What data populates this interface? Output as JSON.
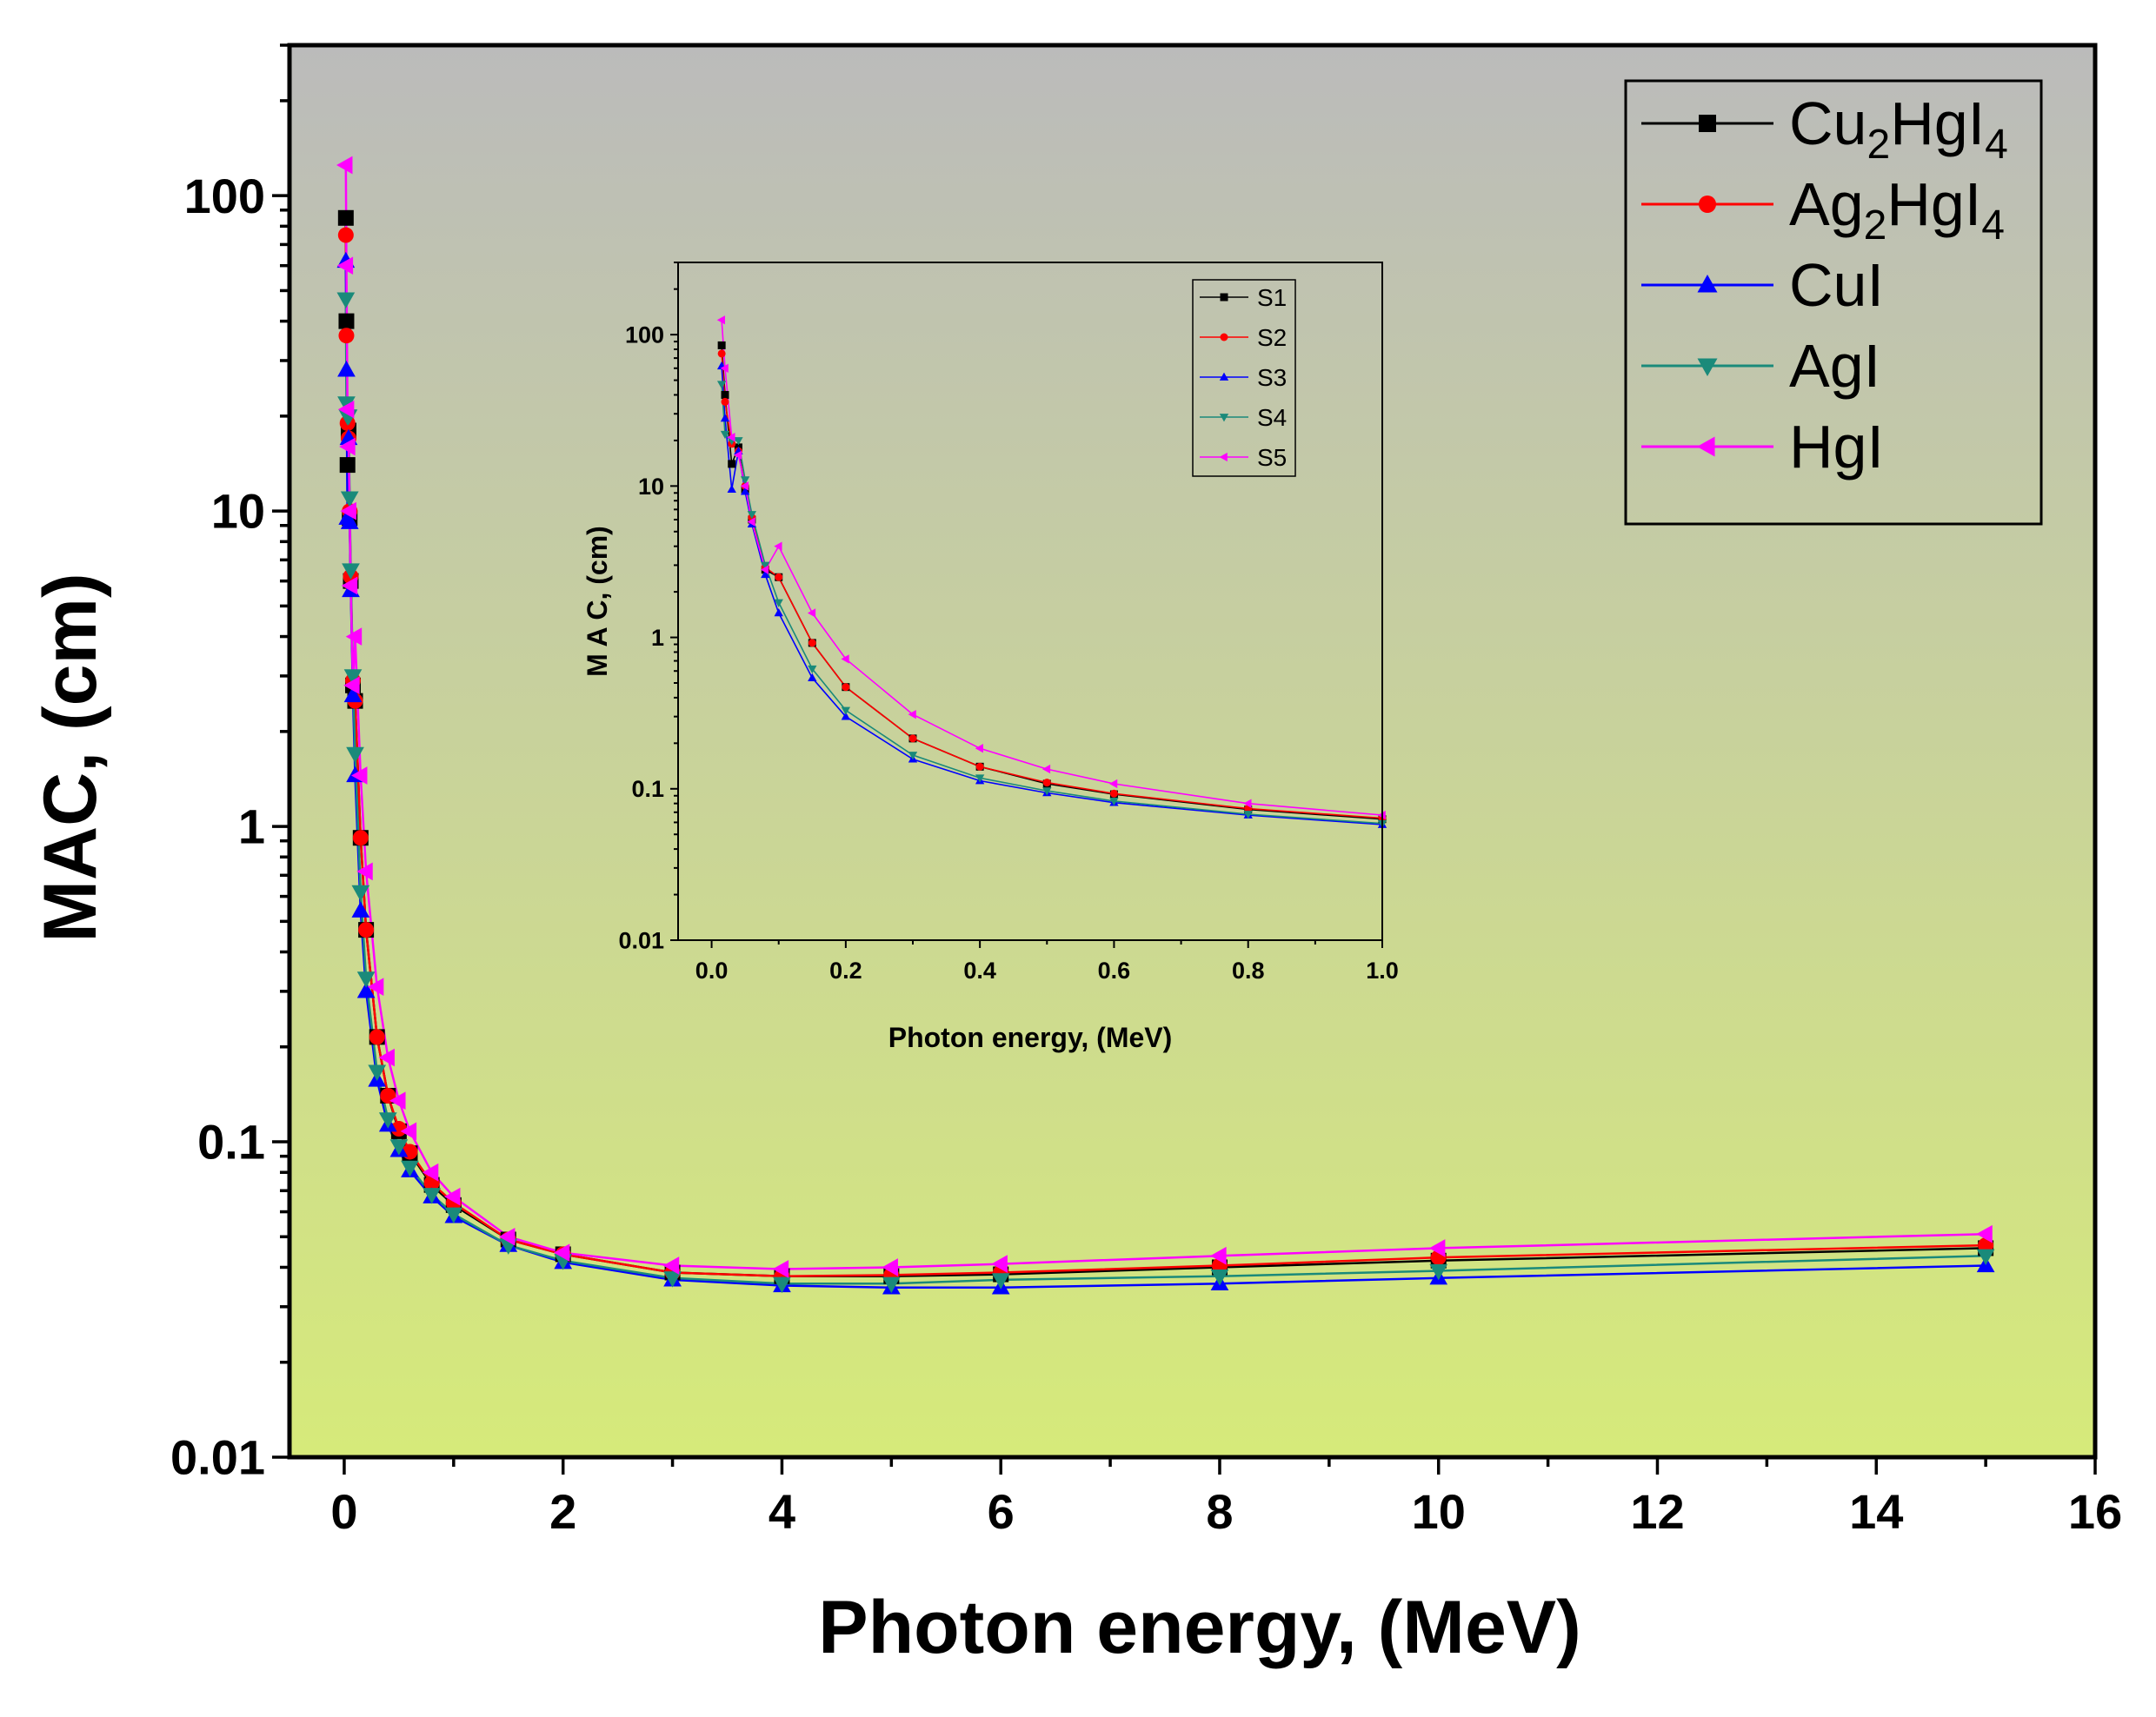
{
  "chart_data": [
    {
      "type": "line",
      "title": "",
      "xlabel": "Photon energy, (MeV)",
      "ylabel": "MAC, (cm)",
      "yscale": "log",
      "xlim": [
        -0.5,
        16
      ],
      "ylim": [
        0.01,
        300
      ],
      "x_ticks": [
        0,
        2,
        4,
        6,
        8,
        10,
        12,
        14,
        16
      ],
      "x_tick_labels": [
        "0",
        "2",
        "4",
        "6",
        "8",
        "10",
        "12",
        "14",
        "16"
      ],
      "y_ticks": [
        0.01,
        0.1,
        1,
        10,
        100
      ],
      "y_tick_labels": [
        "0.01",
        "0.1",
        "1",
        "10",
        "100"
      ],
      "legend_position": "top-right",
      "background": {
        "top": "#bbbbbb",
        "bottom": "#d6ea7a"
      },
      "x": [
        0.015,
        0.02,
        0.03,
        0.04,
        0.05,
        0.06,
        0.08,
        0.1,
        0.15,
        0.2,
        0.3,
        0.4,
        0.5,
        0.6,
        0.8,
        1,
        1.5,
        2,
        3,
        4,
        5,
        6,
        8,
        10,
        15
      ],
      "series": [
        {
          "name": "Cu2HgI4",
          "name_base": "Cu",
          "name_sub1": "2",
          "name_mid": "HgI",
          "name_sub2": "4",
          "color": "#000000",
          "marker": "square",
          "values": [
            85,
            40,
            14,
            18,
            9.5,
            6,
            2.8,
            2.5,
            0.92,
            0.47,
            0.215,
            0.14,
            0.108,
            0.092,
            0.073,
            0.063,
            0.049,
            0.044,
            0.0385,
            0.0375,
            0.0375,
            0.038,
            0.04,
            0.042,
            0.046
          ]
        },
        {
          "name": "Ag2HgI4",
          "name_base": "Ag",
          "name_sub1": "2",
          "name_mid": "HgI",
          "name_sub2": "4",
          "color": "#ff0000",
          "marker": "circle",
          "values": [
            75,
            36,
            19,
            17,
            10,
            6.2,
            2.9,
            2.5,
            0.92,
            0.47,
            0.215,
            0.14,
            0.11,
            0.093,
            0.074,
            0.064,
            0.049,
            0.044,
            0.0385,
            0.0375,
            0.0378,
            0.0385,
            0.0405,
            0.043,
            0.047
          ]
        },
        {
          "name": "CuI",
          "color": "#0000ff",
          "marker": "triangle-up",
          "values": [
            62,
            28,
            9.5,
            17,
            9.2,
            5.6,
            2.6,
            1.45,
            0.54,
            0.3,
            0.157,
            0.113,
            0.094,
            0.081,
            0.067,
            0.058,
            0.047,
            0.0415,
            0.0365,
            0.035,
            0.0345,
            0.0345,
            0.0355,
            0.037,
            0.0405
          ]
        },
        {
          "name": "AgI",
          "color": "#1a8a7a",
          "marker": "triangle-down",
          "values": [
            47,
            22,
            20,
            20,
            11,
            6.5,
            3.0,
            1.7,
            0.62,
            0.33,
            0.167,
            0.118,
            0.097,
            0.083,
            0.068,
            0.059,
            0.047,
            0.042,
            0.037,
            0.0355,
            0.0355,
            0.0365,
            0.0375,
            0.039,
            0.0435
          ]
        },
        {
          "name": "HgI",
          "color": "#ff00ff",
          "marker": "triangle-left",
          "values": [
            125,
            60,
            21,
            16,
            10,
            5.8,
            2.8,
            4.0,
            1.45,
            0.72,
            0.31,
            0.185,
            0.135,
            0.108,
            0.08,
            0.067,
            0.05,
            0.0445,
            0.0405,
            0.0395,
            0.04,
            0.041,
            0.0435,
            0.046,
            0.051
          ]
        }
      ]
    },
    {
      "type": "line",
      "title": "",
      "xlabel": "Photon energy, (MeV)",
      "ylabel": "M A C, (cm)",
      "yscale": "log",
      "xlim": [
        -0.05,
        1.0
      ],
      "ylim": [
        0.01,
        300
      ],
      "x_ticks": [
        0.0,
        0.2,
        0.4,
        0.6,
        0.8,
        1.0
      ],
      "x_tick_labels": [
        "0.0",
        "0.2",
        "0.4",
        "0.6",
        "0.8",
        "1.0"
      ],
      "y_ticks": [
        0.01,
        0.1,
        1,
        10,
        100
      ],
      "y_tick_labels": [
        "0.01",
        "0.1",
        "1",
        "10",
        "100"
      ],
      "legend_position": "top-right",
      "x": [
        0.015,
        0.02,
        0.03,
        0.04,
        0.05,
        0.06,
        0.08,
        0.1,
        0.15,
        0.2,
        0.3,
        0.4,
        0.5,
        0.6,
        0.8,
        1.0
      ],
      "series": [
        {
          "name": "S1",
          "color": "#000000",
          "marker": "square",
          "values": [
            85,
            40,
            14,
            18,
            9.5,
            6,
            2.8,
            2.5,
            0.92,
            0.47,
            0.215,
            0.14,
            0.108,
            0.092,
            0.073,
            0.063
          ]
        },
        {
          "name": "S2",
          "color": "#ff0000",
          "marker": "circle",
          "values": [
            75,
            36,
            19,
            17,
            10,
            6.2,
            2.9,
            2.5,
            0.92,
            0.47,
            0.215,
            0.14,
            0.11,
            0.093,
            0.074,
            0.064
          ]
        },
        {
          "name": "S3",
          "color": "#0000ff",
          "marker": "triangle-up",
          "values": [
            62,
            28,
            9.5,
            17,
            9.2,
            5.6,
            2.6,
            1.45,
            0.54,
            0.3,
            0.157,
            0.113,
            0.094,
            0.081,
            0.067,
            0.058
          ]
        },
        {
          "name": "S4",
          "color": "#1a8a7a",
          "marker": "triangle-down",
          "values": [
            47,
            22,
            20,
            20,
            11,
            6.5,
            3.0,
            1.7,
            0.62,
            0.33,
            0.167,
            0.118,
            0.097,
            0.083,
            0.068,
            0.059
          ]
        },
        {
          "name": "S5",
          "color": "#ff00ff",
          "marker": "triangle-left",
          "values": [
            125,
            60,
            21,
            16,
            10,
            5.8,
            2.8,
            4.0,
            1.45,
            0.72,
            0.31,
            0.185,
            0.135,
            0.108,
            0.08,
            0.067
          ]
        }
      ]
    }
  ]
}
